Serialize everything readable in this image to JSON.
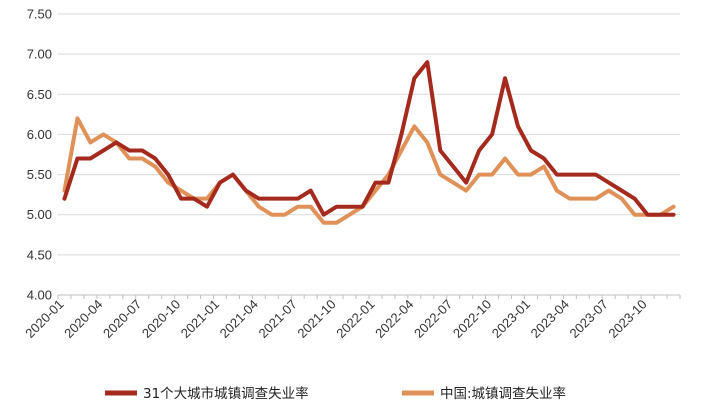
{
  "chart_data": {
    "type": "line",
    "title": "",
    "xlabel": "",
    "ylabel": "",
    "ylim": [
      4.0,
      7.5
    ],
    "yticks": [
      "4.00",
      "4.50",
      "5.00",
      "5.50",
      "6.00",
      "6.50",
      "7.00",
      "7.50"
    ],
    "grid": "horizontal",
    "legend_position": "bottom",
    "x": [
      "2020-01",
      "2020-02",
      "2020-03",
      "2020-04",
      "2020-05",
      "2020-06",
      "2020-07",
      "2020-08",
      "2020-09",
      "2020-10",
      "2020-11",
      "2020-12",
      "2021-01",
      "2021-02",
      "2021-03",
      "2021-04",
      "2021-05",
      "2021-06",
      "2021-07",
      "2021-08",
      "2021-09",
      "2021-10",
      "2021-11",
      "2021-12",
      "2022-01",
      "2022-02",
      "2022-03",
      "2022-04",
      "2022-05",
      "2022-06",
      "2022-07",
      "2022-08",
      "2022-09",
      "2022-10",
      "2022-11",
      "2022-12",
      "2023-01",
      "2023-02",
      "2023-03",
      "2023-04",
      "2023-05",
      "2023-06",
      "2023-07",
      "2023-08",
      "2023-09",
      "2023-10",
      "2023-11",
      "2023-12"
    ],
    "xtick_labels": [
      "2020-01",
      "2020-04",
      "2020-07",
      "2020-10",
      "2021-01",
      "2021-04",
      "2021-07",
      "2021-10",
      "2022-01",
      "2022-04",
      "2022-07",
      "2022-10",
      "2023-01",
      "2023-04",
      "2023-07",
      "2023-10"
    ],
    "series": [
      {
        "name": "31个大城市城镇调查失业率",
        "color": "#a52a1e",
        "values": [
          5.2,
          5.7,
          5.7,
          5.8,
          5.9,
          5.8,
          5.8,
          5.7,
          5.5,
          5.2,
          5.2,
          5.1,
          5.4,
          5.5,
          5.3,
          5.2,
          5.2,
          5.2,
          5.2,
          5.3,
          5.0,
          5.1,
          5.1,
          5.1,
          5.4,
          5.4,
          6.0,
          6.7,
          6.9,
          5.8,
          5.6,
          5.4,
          5.8,
          6.0,
          6.7,
          6.1,
          5.8,
          5.7,
          5.5,
          5.5,
          5.5,
          5.5,
          5.4,
          5.3,
          5.2,
          5.0,
          5.0,
          5.0
        ]
      },
      {
        "name": "中国:城镇调查失业率",
        "color": "#df9157",
        "values": [
          5.3,
          6.2,
          5.9,
          6.0,
          5.9,
          5.7,
          5.7,
          5.6,
          5.4,
          5.3,
          5.2,
          5.2,
          5.4,
          5.5,
          5.3,
          5.1,
          5.0,
          5.0,
          5.1,
          5.1,
          4.9,
          4.9,
          5.0,
          5.1,
          5.3,
          5.5,
          5.8,
          6.1,
          5.9,
          5.5,
          5.4,
          5.3,
          5.5,
          5.5,
          5.7,
          5.5,
          5.5,
          5.6,
          5.3,
          5.2,
          5.2,
          5.2,
          5.3,
          5.2,
          5.0,
          5.0,
          5.0,
          5.1
        ]
      }
    ]
  }
}
